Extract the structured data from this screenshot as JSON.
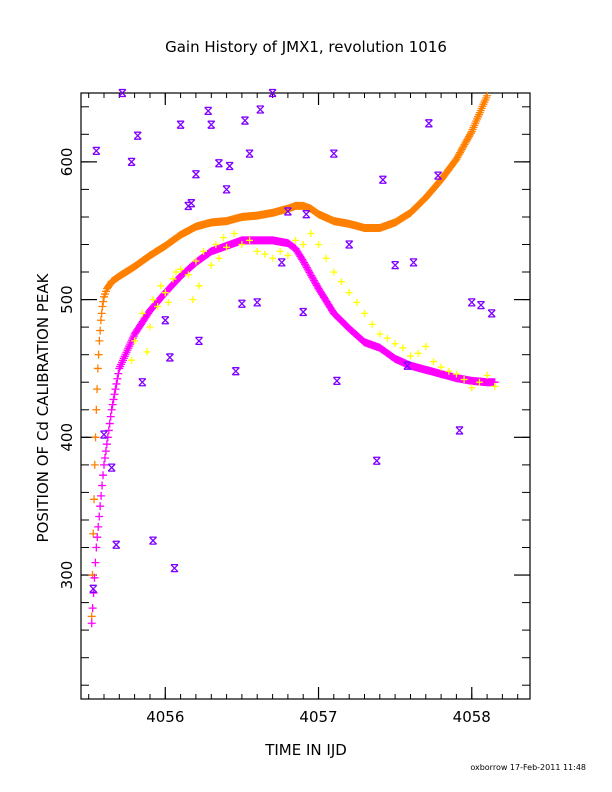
{
  "chart_data": {
    "type": "scatter",
    "title": "Gain History of JMX1, revolution 1016",
    "xlabel": "TIME IN IJD",
    "ylabel": "POSITION OF Cd CALIBRATION PEAK",
    "xlim": [
      4055.45,
      4058.38
    ],
    "ylim": [
      210,
      650
    ],
    "x_ticks": [
      "4056",
      "4057",
      "4058"
    ],
    "y_ticks": [
      "300",
      "400",
      "500",
      "600"
    ],
    "grid": false,
    "legend": "none",
    "colors": {
      "orange": "#ff8000",
      "magenta": "#ff00ff",
      "yellow": "#ffff00",
      "purple": "#8000ff"
    },
    "series": [
      {
        "marker": "plus",
        "color": "#ff8000",
        "x": [
          4055.52,
          4055.53,
          4055.54,
          4055.55,
          4055.56,
          4055.57,
          4055.58,
          4055.59,
          4055.6,
          4055.62,
          4055.65,
          4055.7,
          4055.8,
          4055.9,
          4056.0,
          4056.1,
          4056.2,
          4056.3,
          4056.4,
          4056.5,
          4056.6,
          4056.7,
          4056.8,
          4056.85,
          4056.9,
          4056.95,
          4057.0,
          4057.1,
          4057.2,
          4057.3,
          4057.4,
          4057.5,
          4057.6,
          4057.7,
          4057.8,
          4057.9,
          4058.0,
          4058.1
        ],
        "y": [
          270,
          330,
          380,
          420,
          450,
          470,
          485,
          495,
          502,
          508,
          513,
          517,
          524,
          532,
          539,
          547,
          553,
          556,
          557,
          560,
          561,
          563,
          566,
          568,
          568,
          566,
          562,
          557,
          555,
          552,
          552,
          556,
          563,
          574,
          587,
          602,
          622,
          648
        ]
      },
      {
        "marker": "plus",
        "color": "#ff00ff",
        "x": [
          4055.52,
          4055.55,
          4055.6,
          4055.65,
          4055.7,
          4055.8,
          4055.9,
          4056.0,
          4056.1,
          4056.2,
          4056.3,
          4056.4,
          4056.5,
          4056.6,
          4056.7,
          4056.8,
          4056.85,
          4056.9,
          4057.0,
          4057.1,
          4057.2,
          4057.3,
          4057.4,
          4057.5,
          4057.6,
          4057.7,
          4057.8,
          4057.9,
          4058.0,
          4058.1,
          4058.15
        ],
        "y": [
          265,
          320,
          380,
          420,
          450,
          475,
          492,
          505,
          517,
          527,
          535,
          539,
          543,
          543,
          543,
          541,
          537,
          528,
          508,
          490,
          479,
          469,
          465,
          457,
          452,
          449,
          446,
          443,
          441,
          440,
          440
        ]
      },
      {
        "marker": "plus",
        "color": "#ffff00",
        "x": [
          4055.78,
          4055.8,
          4055.85,
          4055.88,
          4055.9,
          4055.92,
          4055.95,
          4055.97,
          4056.0,
          4056.02,
          4056.05,
          4056.07,
          4056.1,
          4056.15,
          4056.18,
          4056.2,
          4056.22,
          4056.25,
          4056.3,
          4056.33,
          4056.35,
          4056.38,
          4056.4,
          4056.45,
          4056.5,
          4056.55,
          4056.6,
          4056.65,
          4056.7,
          4056.75,
          4056.8,
          4056.85,
          4056.9,
          4056.95,
          4057.0,
          4057.05,
          4057.1,
          4057.15,
          4057.2,
          4057.25,
          4057.3,
          4057.35,
          4057.4,
          4057.45,
          4057.5,
          4057.55,
          4057.6,
          4057.65,
          4057.7,
          4057.75,
          4057.8,
          4057.85,
          4057.9,
          4057.95,
          4058.0,
          4058.05,
          4058.1,
          4058.15
        ],
        "y": [
          456,
          470,
          490,
          462,
          480,
          500,
          495,
          510,
          505,
          498,
          515,
          520,
          522,
          518,
          500,
          528,
          510,
          535,
          525,
          540,
          530,
          545,
          538,
          548,
          540,
          543,
          535,
          533,
          530,
          535,
          532,
          543,
          540,
          548,
          540,
          530,
          520,
          513,
          505,
          498,
          490,
          482,
          475,
          472,
          468,
          465,
          459,
          461,
          466,
          455,
          451,
          448,
          446,
          442,
          436,
          440,
          445,
          437
        ]
      },
      {
        "marker": "x",
        "color": "#8000ff",
        "x": [
          4055.53,
          4055.55,
          4055.6,
          4055.65,
          4055.68,
          4055.72,
          4055.78,
          4055.82,
          4055.85,
          4055.92,
          4056.0,
          4056.03,
          4056.06,
          4056.1,
          4056.15,
          4056.17,
          4056.2,
          4056.22,
          4056.28,
          4056.3,
          4056.35,
          4056.4,
          4056.42,
          4056.46,
          4056.5,
          4056.52,
          4056.55,
          4056.6,
          4056.62,
          4056.7,
          4056.76,
          4056.8,
          4056.9,
          4056.92,
          4057.1,
          4057.12,
          4057.2,
          4057.38,
          4057.42,
          4057.5,
          4057.58,
          4057.62,
          4057.72,
          4057.78,
          4057.92,
          4058.0,
          4058.06,
          4058.13
        ],
        "y": [
          290,
          608,
          402,
          378,
          322,
          650,
          600,
          619,
          440,
          325,
          485,
          458,
          305,
          627,
          568,
          570,
          591,
          470,
          637,
          627,
          599,
          580,
          597,
          448,
          497,
          630,
          606,
          498,
          638,
          650,
          527,
          564,
          491,
          562,
          606,
          441,
          540,
          383,
          587,
          525,
          452,
          527,
          628,
          590,
          405,
          498,
          496,
          490
        ]
      }
    ]
  },
  "footer": {
    "stamp": "oxborrow 17-Feb-2011 11:48"
  }
}
